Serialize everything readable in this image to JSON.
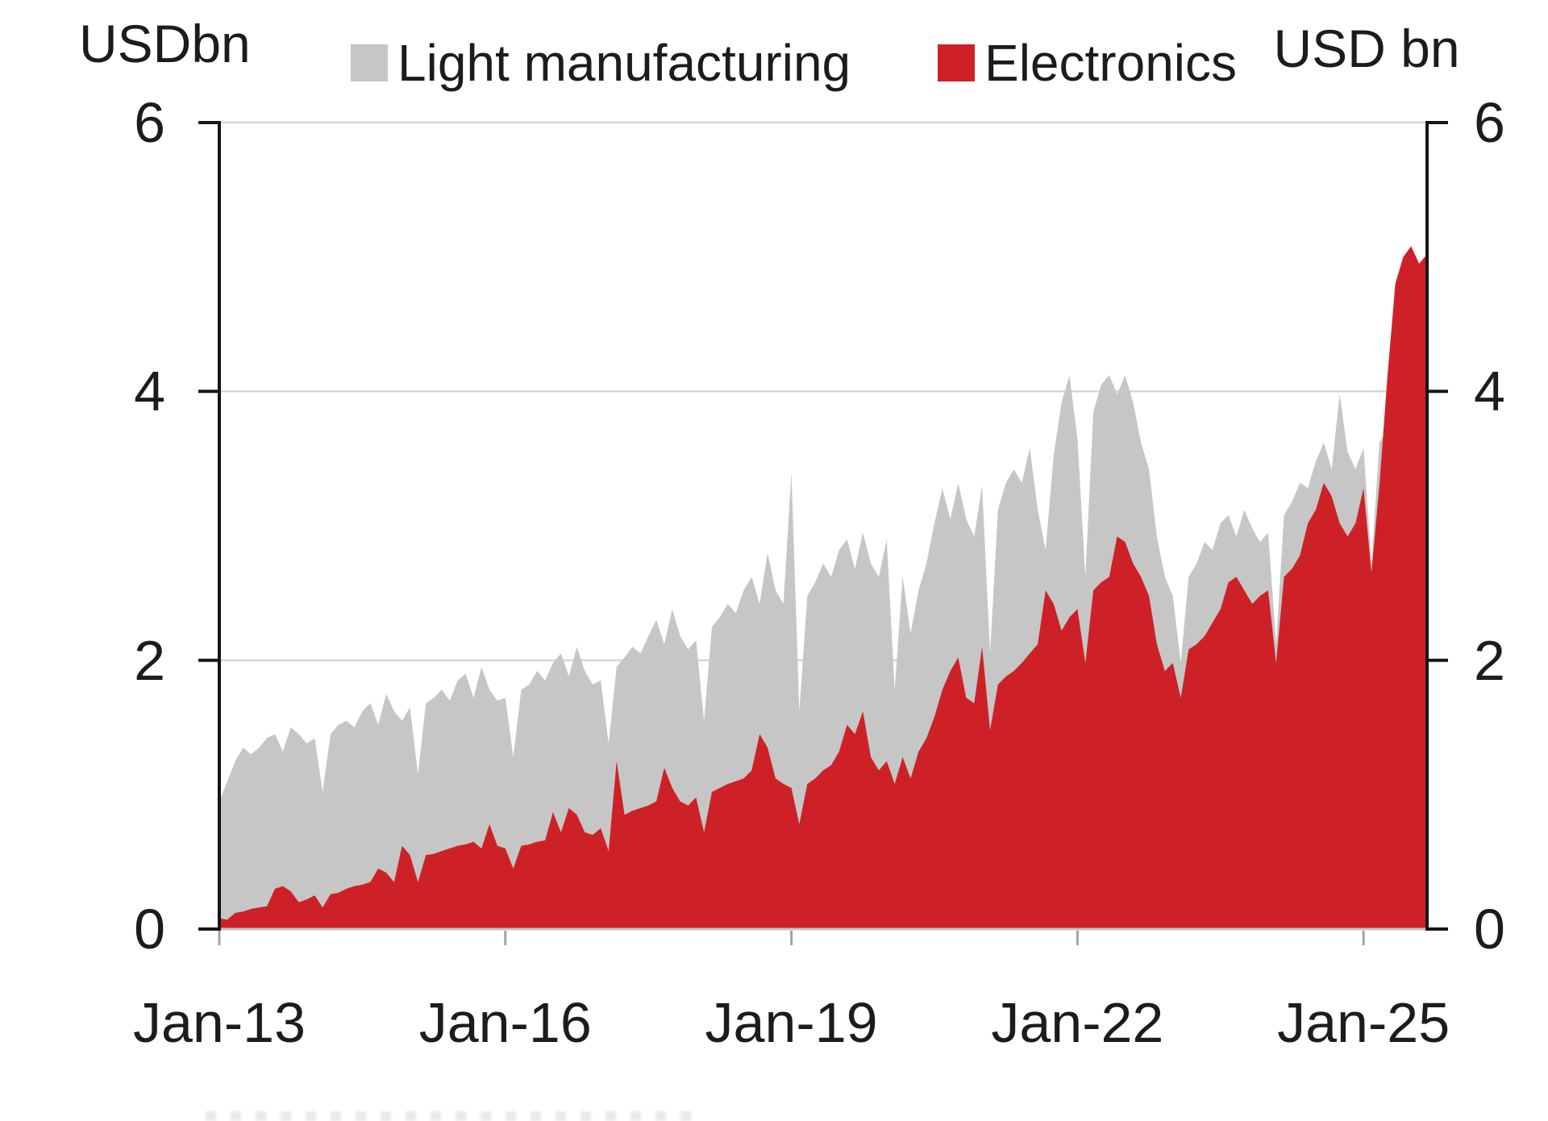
{
  "chart_data": {
    "type": "area",
    "overlay": true,
    "frequency": "monthly",
    "x_start": "Jan-2013",
    "x_end": "Sep-2025",
    "ylabel_left": "USDbn",
    "ylabel_right": "USD bn",
    "ylim": [
      0,
      6
    ],
    "yticks": [
      0,
      2,
      4,
      6
    ],
    "grid": true,
    "legend_position": "top",
    "xticks": [
      {
        "index": 0,
        "label": "Jan-13"
      },
      {
        "index": 36,
        "label": "Jan-16"
      },
      {
        "index": 72,
        "label": "Jan-19"
      },
      {
        "index": 108,
        "label": "Jan-22"
      },
      {
        "index": 144,
        "label": "Jan-25"
      }
    ],
    "colors": {
      "gridline": "#d7d7d7",
      "baseline": "#c2c2c2",
      "axis": "#151515",
      "text": "#1c1c1c"
    },
    "series": [
      {
        "name": "Light manufacturing",
        "color": "#c6c6c6",
        "values": [
          0.95,
          1.1,
          1.25,
          1.35,
          1.3,
          1.35,
          1.42,
          1.45,
          1.32,
          1.5,
          1.45,
          1.38,
          1.42,
          1.02,
          1.45,
          1.52,
          1.55,
          1.5,
          1.62,
          1.68,
          1.52,
          1.75,
          1.62,
          1.55,
          1.65,
          1.15,
          1.68,
          1.72,
          1.78,
          1.7,
          1.85,
          1.9,
          1.72,
          1.95,
          1.78,
          1.7,
          1.72,
          1.28,
          1.78,
          1.82,
          1.92,
          1.85,
          1.98,
          2.05,
          1.88,
          2.1,
          1.92,
          1.82,
          1.85,
          1.38,
          1.95,
          2.02,
          2.1,
          2.05,
          2.18,
          2.3,
          2.12,
          2.38,
          2.18,
          2.08,
          2.15,
          1.55,
          2.25,
          2.32,
          2.42,
          2.35,
          2.52,
          2.62,
          2.42,
          2.8,
          2.52,
          2.42,
          3.4,
          1.62,
          2.48,
          2.58,
          2.72,
          2.62,
          2.82,
          2.9,
          2.68,
          2.95,
          2.72,
          2.62,
          2.9,
          1.78,
          2.62,
          2.2,
          2.52,
          2.72,
          3.02,
          3.28,
          3.05,
          3.32,
          3.05,
          2.92,
          3.3,
          2.05,
          3.12,
          3.32,
          3.42,
          3.32,
          3.58,
          3.12,
          2.82,
          3.52,
          3.92,
          4.12,
          3.65,
          2.62,
          3.85,
          4.05,
          4.12,
          3.98,
          4.12,
          3.92,
          3.62,
          3.42,
          2.92,
          2.62,
          2.48,
          1.98,
          2.62,
          2.72,
          2.88,
          2.82,
          3.02,
          3.08,
          2.92,
          3.12,
          2.98,
          2.88,
          2.95,
          2.12,
          3.08,
          3.18,
          3.32,
          3.28,
          3.48,
          3.62,
          3.42,
          3.98,
          3.55,
          3.42,
          3.58,
          2.72,
          3.62,
          3.72,
          3.82,
          3.92,
          3.85,
          3.72,
          3.62
        ]
      },
      {
        "name": "Electronics",
        "color": "#ce2127",
        "values": [
          0.08,
          0.07,
          0.12,
          0.13,
          0.15,
          0.16,
          0.17,
          0.3,
          0.32,
          0.28,
          0.2,
          0.22,
          0.25,
          0.16,
          0.26,
          0.27,
          0.3,
          0.32,
          0.33,
          0.35,
          0.45,
          0.42,
          0.35,
          0.62,
          0.55,
          0.35,
          0.55,
          0.56,
          0.58,
          0.6,
          0.62,
          0.63,
          0.65,
          0.6,
          0.78,
          0.62,
          0.6,
          0.45,
          0.62,
          0.63,
          0.65,
          0.66,
          0.87,
          0.72,
          0.9,
          0.85,
          0.72,
          0.7,
          0.75,
          0.58,
          1.25,
          0.85,
          0.88,
          0.9,
          0.92,
          0.95,
          1.2,
          1.05,
          0.95,
          0.92,
          0.98,
          0.72,
          1.02,
          1.05,
          1.08,
          1.1,
          1.12,
          1.18,
          1.45,
          1.35,
          1.12,
          1.08,
          1.05,
          0.78,
          1.08,
          1.12,
          1.18,
          1.22,
          1.32,
          1.52,
          1.45,
          1.62,
          1.28,
          1.18,
          1.25,
          1.08,
          1.28,
          1.12,
          1.32,
          1.42,
          1.58,
          1.78,
          1.92,
          2.02,
          1.72,
          1.68,
          2.1,
          1.48,
          1.82,
          1.88,
          1.92,
          1.98,
          2.05,
          2.12,
          2.52,
          2.42,
          2.22,
          2.32,
          2.38,
          1.98,
          2.52,
          2.58,
          2.62,
          2.92,
          2.88,
          2.72,
          2.62,
          2.48,
          2.12,
          1.92,
          1.98,
          1.72,
          2.08,
          2.12,
          2.18,
          2.28,
          2.38,
          2.58,
          2.62,
          2.52,
          2.42,
          2.48,
          2.52,
          1.98,
          2.62,
          2.68,
          2.78,
          3.02,
          3.12,
          3.32,
          3.22,
          3.02,
          2.92,
          3.02,
          3.28,
          2.65,
          3.3,
          4.1,
          4.8,
          5.0,
          5.08,
          4.95,
          5.02
        ]
      }
    ]
  }
}
